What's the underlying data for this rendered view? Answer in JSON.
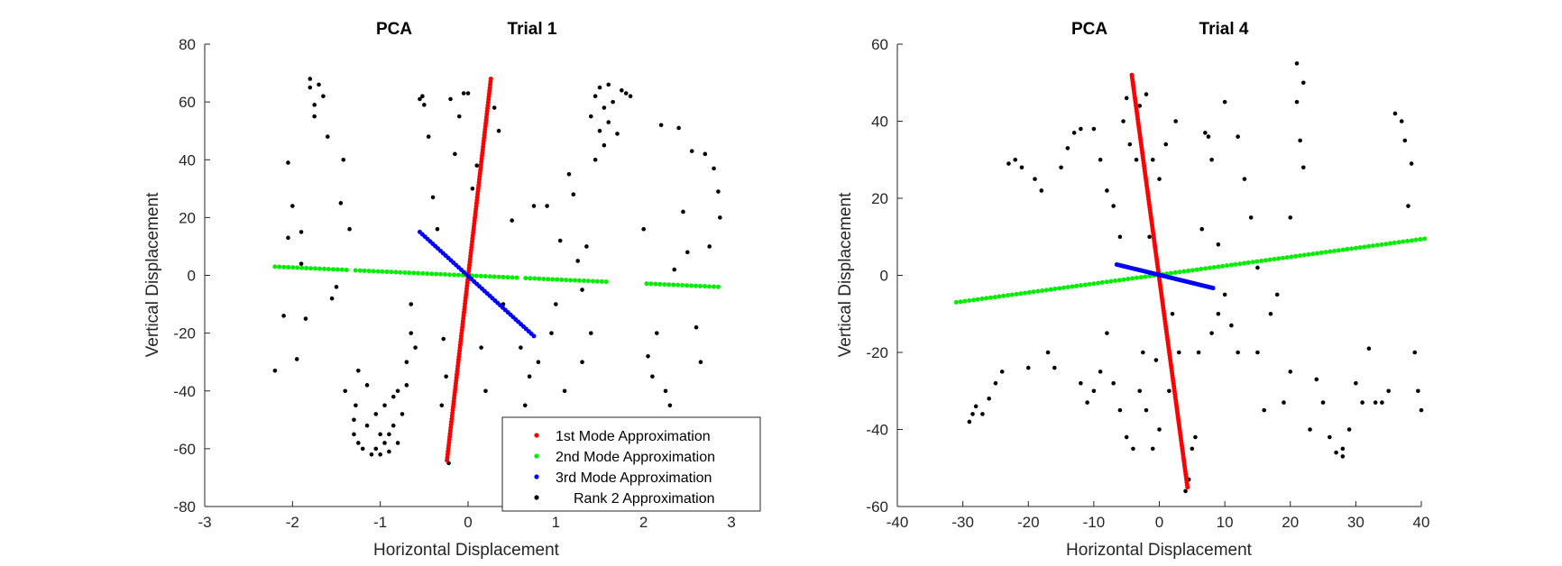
{
  "chart_data": [
    {
      "type": "scatter",
      "title_left": "PCA",
      "title_right": "Trial 1",
      "xlabel": "Horizontal Displacement",
      "ylabel": "Vertical Displacement",
      "xlim": [
        -3,
        3
      ],
      "ylim": [
        -80,
        80
      ],
      "xticks": [
        "-3",
        "-2",
        "-1",
        "0",
        "1",
        "2",
        "3"
      ],
      "yticks": [
        "-80",
        "-60",
        "-40",
        "-20",
        "0",
        "20",
        "40",
        "60",
        "80"
      ],
      "legend": {
        "position": "bottom-right",
        "entries": [
          "1st Mode Approximation",
          "2nd Mode Approximation",
          "3rd Mode Approximation",
          "Rank 2 Approximation"
        ]
      },
      "series": [
        {
          "name": "1st Mode Approximation",
          "color": "#ff0000",
          "kind": "segment",
          "x": [
            -0.24,
            0.26
          ],
          "y": [
            -64,
            68
          ],
          "count": 130
        },
        {
          "name": "2nd Mode Approximation",
          "color": "#00ee00",
          "kind": "segment",
          "x": [
            -2.2,
            2.85
          ],
          "y": [
            3,
            -4
          ],
          "count": 100,
          "gaps": [
            [
              -1.35,
              -1.3
            ],
            [
              0.6,
              0.65
            ],
            [
              1.6,
              2.0
            ]
          ]
        },
        {
          "name": "3rd Mode Approximation",
          "color": "#0000ff",
          "kind": "segment",
          "x": [
            -0.55,
            0.75
          ],
          "y": [
            15,
            -21
          ],
          "count": 45
        },
        {
          "name": "Rank 2 Approximation",
          "color": "#000000",
          "kind": "points",
          "points": [
            [
              -2.2,
              -33
            ],
            [
              -2.1,
              -14
            ],
            [
              -2.05,
              13
            ],
            [
              -2.05,
              39
            ],
            [
              -2.0,
              24
            ],
            [
              -1.95,
              -29
            ],
            [
              -1.9,
              4
            ],
            [
              -1.9,
              15
            ],
            [
              -1.85,
              -15
            ],
            [
              -1.8,
              68
            ],
            [
              -1.8,
              65
            ],
            [
              -1.75,
              59
            ],
            [
              -1.75,
              55
            ],
            [
              -1.7,
              66
            ],
            [
              -1.65,
              62
            ],
            [
              -1.6,
              48
            ],
            [
              -1.55,
              -8
            ],
            [
              -1.5,
              -4
            ],
            [
              -1.45,
              25
            ],
            [
              -1.42,
              40
            ],
            [
              -1.4,
              -40
            ],
            [
              -1.35,
              16
            ],
            [
              -1.3,
              -50
            ],
            [
              -1.3,
              -55
            ],
            [
              -1.28,
              -45
            ],
            [
              -1.25,
              -33
            ],
            [
              -1.25,
              -58
            ],
            [
              -1.2,
              -60
            ],
            [
              -1.15,
              -52
            ],
            [
              -1.15,
              -38
            ],
            [
              -1.1,
              -62
            ],
            [
              -1.05,
              -60
            ],
            [
              -1.05,
              -48
            ],
            [
              -1.0,
              -55
            ],
            [
              -1.0,
              -62
            ],
            [
              -0.95,
              -58
            ],
            [
              -0.95,
              -45
            ],
            [
              -0.9,
              -61
            ],
            [
              -0.9,
              -55
            ],
            [
              -0.85,
              -52
            ],
            [
              -0.85,
              -42
            ],
            [
              -0.8,
              -58
            ],
            [
              -0.8,
              -40
            ],
            [
              -0.75,
              -48
            ],
            [
              -0.7,
              -38
            ],
            [
              -0.7,
              -30
            ],
            [
              -0.65,
              -20
            ],
            [
              -0.65,
              -10
            ],
            [
              -0.6,
              -25
            ],
            [
              -0.55,
              61
            ],
            [
              -0.52,
              62
            ],
            [
              -0.5,
              59
            ],
            [
              -0.45,
              48
            ],
            [
              -0.4,
              27
            ],
            [
              -0.35,
              16
            ],
            [
              -0.3,
              -45
            ],
            [
              -0.28,
              -22
            ],
            [
              -0.25,
              -35
            ],
            [
              -0.22,
              -65
            ],
            [
              -0.2,
              61
            ],
            [
              -0.15,
              42
            ],
            [
              -0.1,
              55
            ],
            [
              -0.05,
              63
            ],
            [
              0.0,
              63
            ],
            [
              0.05,
              30
            ],
            [
              0.1,
              38
            ],
            [
              0.15,
              -25
            ],
            [
              0.2,
              -40
            ],
            [
              0.3,
              58
            ],
            [
              0.35,
              50
            ],
            [
              0.4,
              -10
            ],
            [
              0.5,
              19
            ],
            [
              0.6,
              -25
            ],
            [
              0.65,
              -45
            ],
            [
              0.7,
              -35
            ],
            [
              0.75,
              24
            ],
            [
              0.8,
              -30
            ],
            [
              0.85,
              -55
            ],
            [
              0.9,
              24
            ],
            [
              0.95,
              -20
            ],
            [
              1.0,
              -10
            ],
            [
              1.05,
              12
            ],
            [
              1.1,
              -40
            ],
            [
              1.15,
              35
            ],
            [
              1.15,
              -52
            ],
            [
              1.2,
              28
            ],
            [
              1.25,
              5
            ],
            [
              1.3,
              -5
            ],
            [
              1.3,
              -30
            ],
            [
              1.35,
              10
            ],
            [
              1.4,
              -20
            ],
            [
              1.4,
              55
            ],
            [
              1.45,
              62
            ],
            [
              1.45,
              40
            ],
            [
              1.5,
              50
            ],
            [
              1.5,
              65
            ],
            [
              1.55,
              58
            ],
            [
              1.55,
              45
            ],
            [
              1.6,
              66
            ],
            [
              1.6,
              53
            ],
            [
              1.65,
              60
            ],
            [
              1.7,
              49
            ],
            [
              1.75,
              64
            ],
            [
              1.8,
              63
            ],
            [
              1.85,
              62
            ],
            [
              2.0,
              16
            ],
            [
              2.05,
              -28
            ],
            [
              2.1,
              -35
            ],
            [
              2.15,
              -20
            ],
            [
              2.2,
              52
            ],
            [
              2.25,
              -40
            ],
            [
              2.3,
              -45
            ],
            [
              2.35,
              2
            ],
            [
              2.4,
              51
            ],
            [
              2.45,
              22
            ],
            [
              2.5,
              8
            ],
            [
              2.55,
              43
            ],
            [
              2.6,
              -18
            ],
            [
              2.65,
              -30
            ],
            [
              2.7,
              42
            ],
            [
              2.75,
              10
            ],
            [
              2.8,
              37
            ],
            [
              2.85,
              29
            ],
            [
              2.87,
              20
            ]
          ]
        }
      ]
    },
    {
      "type": "scatter",
      "title_left": "PCA",
      "title_right": "Trial 4",
      "xlabel": "Horizontal Displacement",
      "ylabel": "Vertical Displacement",
      "xlim": [
        -40,
        40
      ],
      "ylim": [
        -60,
        60
      ],
      "xticks": [
        "-40",
        "-30",
        "-20",
        "-10",
        "0",
        "10",
        "20",
        "30",
        "40"
      ],
      "yticks": [
        "-60",
        "-40",
        "-20",
        "0",
        "20",
        "40",
        "60"
      ],
      "series": [
        {
          "name": "1st Mode Approximation",
          "color": "#ff0000",
          "kind": "segment",
          "x": [
            -4.2,
            4.3
          ],
          "y": [
            52,
            -55
          ],
          "count": 160
        },
        {
          "name": "2nd Mode Approximation",
          "color": "#00ee00",
          "kind": "segment",
          "x": [
            -31,
            40.5
          ],
          "y": [
            -7,
            9.5
          ],
          "count": 110
        },
        {
          "name": "3rd Mode Approximation",
          "color": "#0000ff",
          "kind": "segment",
          "x": [
            -6.5,
            8.2
          ],
          "y": [
            2.8,
            -3.3
          ],
          "count": 60
        },
        {
          "name": "Rank 2 Approximation",
          "color": "#000000",
          "kind": "points",
          "points": [
            [
              -29,
              -38
            ],
            [
              -28.5,
              -36
            ],
            [
              -28,
              -34
            ],
            [
              -27,
              -36
            ],
            [
              -26,
              -32
            ],
            [
              -25,
              -28
            ],
            [
              -24,
              -25
            ],
            [
              -23,
              29
            ],
            [
              -22,
              30
            ],
            [
              -21,
              28
            ],
            [
              -20,
              -24
            ],
            [
              -19,
              25
            ],
            [
              -18,
              22
            ],
            [
              -17,
              -20
            ],
            [
              -16,
              -24
            ],
            [
              -15,
              28
            ],
            [
              -14,
              33
            ],
            [
              -13,
              37
            ],
            [
              -12,
              38
            ],
            [
              -12,
              -28
            ],
            [
              -11,
              -33
            ],
            [
              -10,
              38
            ],
            [
              -10,
              -30
            ],
            [
              -9,
              -25
            ],
            [
              -9,
              30
            ],
            [
              -8,
              22
            ],
            [
              -8,
              -15
            ],
            [
              -7,
              18
            ],
            [
              -7,
              -28
            ],
            [
              -6,
              10
            ],
            [
              -6,
              -35
            ],
            [
              -5.5,
              40
            ],
            [
              -5,
              46
            ],
            [
              -5,
              -42
            ],
            [
              -4.5,
              34
            ],
            [
              -4,
              50
            ],
            [
              -4,
              -45
            ],
            [
              -3.5,
              30
            ],
            [
              -3,
              -30
            ],
            [
              -3,
              44
            ],
            [
              -2.5,
              -20
            ],
            [
              -2,
              47
            ],
            [
              -2,
              -35
            ],
            [
              -1.5,
              10
            ],
            [
              -1,
              -45
            ],
            [
              -1,
              30
            ],
            [
              -0.5,
              -22
            ],
            [
              0,
              25
            ],
            [
              0,
              -40
            ],
            [
              1,
              34
            ],
            [
              1.5,
              -30
            ],
            [
              2,
              -10
            ],
            [
              2.5,
              40
            ],
            [
              3,
              -20
            ],
            [
              3.5,
              -45
            ],
            [
              4,
              -56
            ],
            [
              4.5,
              -53
            ],
            [
              5,
              -45
            ],
            [
              5.5,
              -42
            ],
            [
              6,
              -20
            ],
            [
              6.5,
              12
            ],
            [
              7,
              37
            ],
            [
              7.5,
              36
            ],
            [
              8,
              30
            ],
            [
              8,
              -15
            ],
            [
              9,
              -10
            ],
            [
              9,
              8
            ],
            [
              10,
              45
            ],
            [
              10,
              -5
            ],
            [
              11,
              -13
            ],
            [
              12,
              36
            ],
            [
              12,
              -20
            ],
            [
              13,
              25
            ],
            [
              14,
              15
            ],
            [
              15,
              2
            ],
            [
              15,
              -20
            ],
            [
              16,
              -35
            ],
            [
              17,
              -10
            ],
            [
              18,
              -5
            ],
            [
              19,
              -33
            ],
            [
              20,
              -25
            ],
            [
              20,
              15
            ],
            [
              21,
              55
            ],
            [
              21,
              45
            ],
            [
              21.5,
              35
            ],
            [
              22,
              50
            ],
            [
              22,
              28
            ],
            [
              23,
              -40
            ],
            [
              24,
              -27
            ],
            [
              25,
              -33
            ],
            [
              26,
              -42
            ],
            [
              27,
              -46
            ],
            [
              28,
              -47
            ],
            [
              28,
              -45
            ],
            [
              29,
              -40
            ],
            [
              30,
              -28
            ],
            [
              31,
              -33
            ],
            [
              32,
              -19
            ],
            [
              33,
              -33
            ],
            [
              34,
              -33
            ],
            [
              35,
              -30
            ],
            [
              36,
              42
            ],
            [
              37,
              40
            ],
            [
              37.5,
              35
            ],
            [
              38,
              18
            ],
            [
              38.5,
              29
            ],
            [
              39,
              -20
            ],
            [
              39.5,
              -30
            ],
            [
              40,
              -35
            ]
          ]
        }
      ]
    }
  ]
}
